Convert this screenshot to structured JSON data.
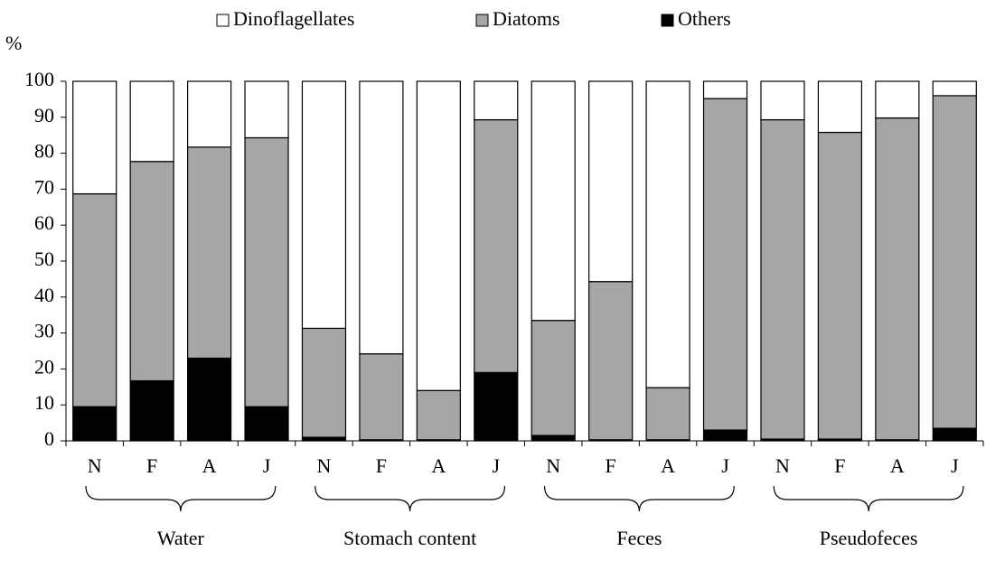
{
  "chart_data": {
    "type": "stacked_bar",
    "y_label": "%",
    "categories": [
      "N",
      "F",
      "A",
      "J",
      "N",
      "F",
      "A",
      "J",
      "N",
      "F",
      "A",
      "J",
      "N",
      "F",
      "A",
      "J"
    ],
    "groups": [
      "Water",
      "Stomach content",
      "Feces",
      "Pseudofeces"
    ],
    "series": [
      {
        "name": "Dinoflagellates",
        "color": "#ffffff",
        "values": [
          31.3,
          22.3,
          18.3,
          15.7,
          68.7,
          75.8,
          86,
          10.7,
          66.5,
          55.7,
          85.2,
          4.8,
          10.7,
          14.2,
          10.2,
          4
        ]
      },
      {
        "name": "Diatoms",
        "color": "#a6a6a6",
        "values": [
          59.2,
          61,
          58.7,
          74.8,
          30.3,
          23.9,
          13.7,
          70.3,
          32,
          44,
          14.5,
          92.2,
          88.8,
          85.3,
          89.5,
          92.5
        ]
      },
      {
        "name": "Others",
        "color": "#000000",
        "values": [
          9.5,
          16.7,
          23,
          9.5,
          1,
          0.3,
          0.3,
          19,
          1.5,
          0.3,
          0.3,
          3,
          0.5,
          0.5,
          0.3,
          3.5
        ]
      }
    ],
    "ylim": [
      0,
      100
    ],
    "yticks": [
      0,
      10,
      20,
      30,
      40,
      50,
      60,
      70,
      80,
      90,
      100
    ],
    "grid": false,
    "legend": "top"
  }
}
